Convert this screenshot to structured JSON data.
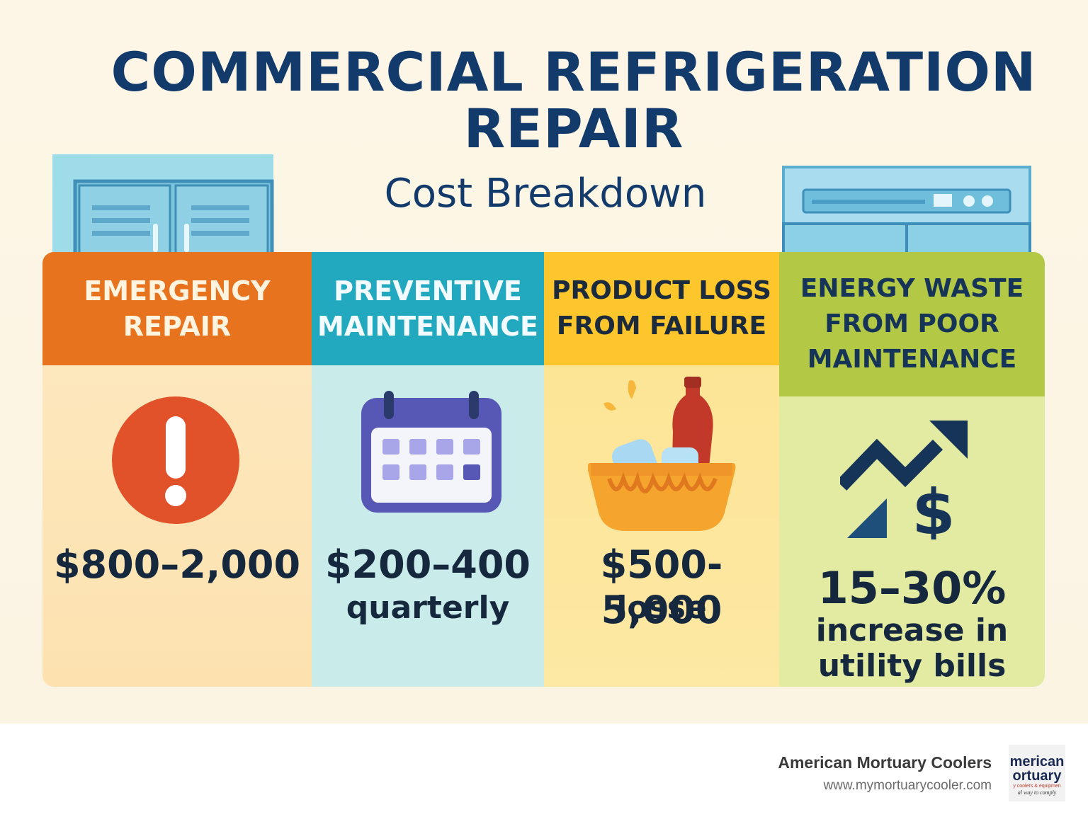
{
  "title": {
    "line1": "COMMERCIAL REFRIGERATION",
    "line2": "REPAIR",
    "subtitle": "Cost Breakdown"
  },
  "columns": [
    {
      "heading_line1": "EMERGENCY",
      "heading_line2": "REPAIR",
      "icon": "exclamation-icon",
      "amount": "$800–2,000",
      "note": ""
    },
    {
      "heading_line1": "PREVENTIVE",
      "heading_line2": "MAINTENANCE",
      "icon": "calendar-icon",
      "amount": "$200–400",
      "note": "quarterly"
    },
    {
      "heading_line1": "PRODUCT LOSS",
      "heading_line2": "FROM FAILURE",
      "icon": "spoiled-food-basket-icon",
      "amount": "$500-5,000",
      "note": "losse"
    },
    {
      "heading_line1": "ENERGY WASTE",
      "heading_line2": "FROM POOR",
      "heading_line3": "MAINTENANCE",
      "icon": "rising-cost-icon",
      "amount": "15–30%",
      "note_line1": "increase in",
      "note_line2": "utility bills"
    }
  ],
  "footer": {
    "brand_name": "American Mortuary Coolers",
    "url": "www.mymortuarycooler.com",
    "logo_text_line1": "merican",
    "logo_text_line2": "ortuary",
    "logo_text_line3": "y coolers & equipmen",
    "logo_text_line4": "al way to comply"
  },
  "colors": {
    "title": "#123a6b",
    "emergency": "#e8731f",
    "preventive": "#23a9bf",
    "product_loss": "#fcc62c",
    "energy_waste": "#b3c946"
  }
}
